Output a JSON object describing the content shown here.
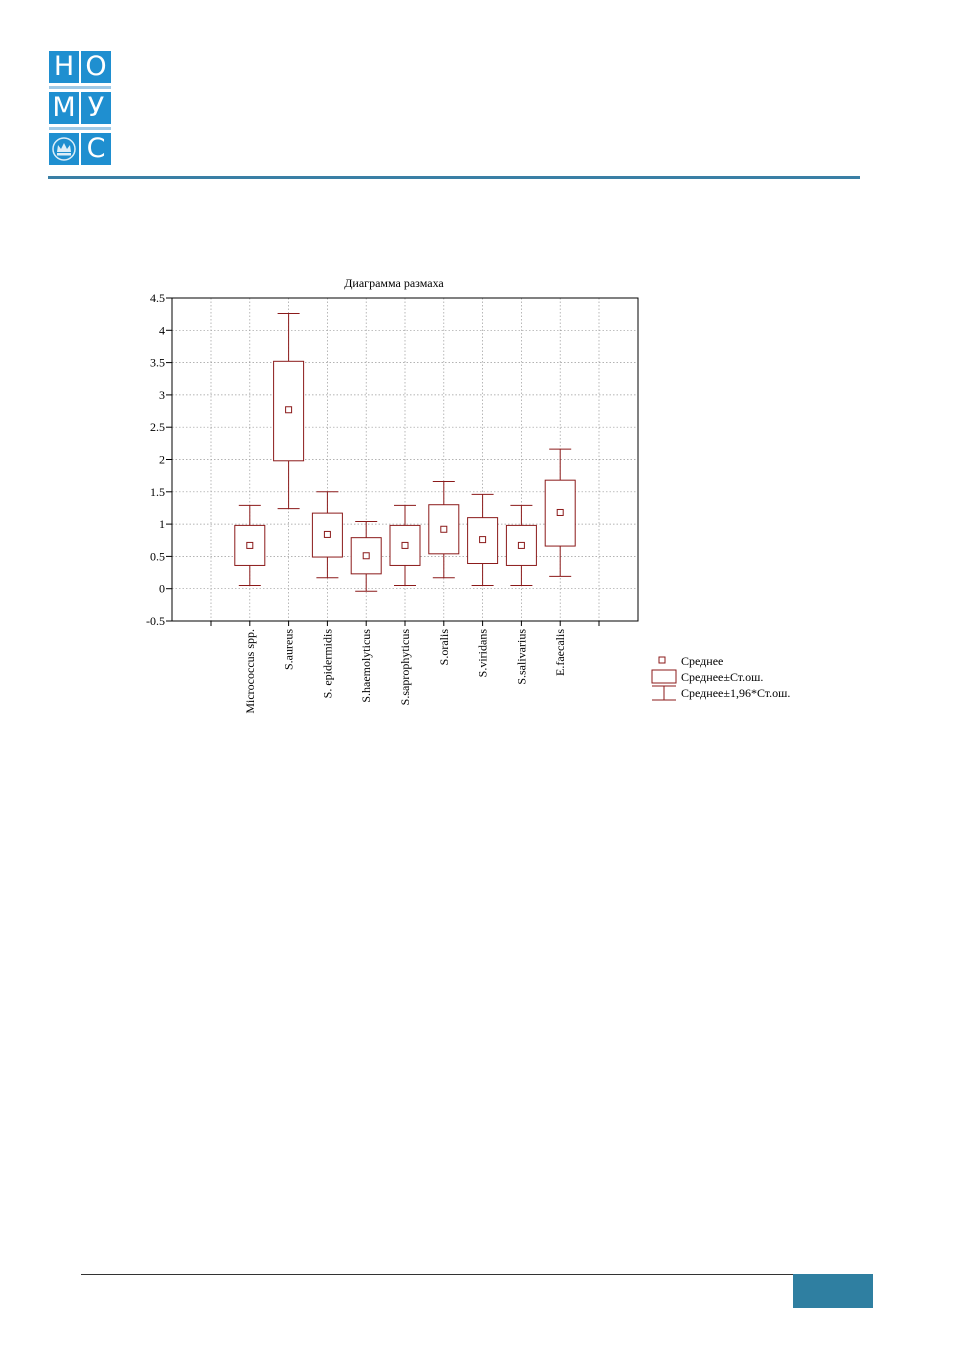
{
  "brand": {
    "logo_letters": [
      "Н",
      "О",
      "М",
      "У",
      "",
      "С"
    ],
    "colors": {
      "logo_blue": "#1f8fd0",
      "logo_sep": "#9fc9e6",
      "header_rule": "#3a7fa5",
      "footer_box": "#2f7fa1"
    }
  },
  "chart_data": {
    "type": "box",
    "title": "Диаграмма размаха",
    "ylim": [
      -0.5,
      4.5
    ],
    "yticks": [
      "4.5",
      "4",
      "3.5",
      "3",
      "2.5",
      "2",
      "1.5",
      "1",
      "0.5",
      "0",
      "-0.5"
    ],
    "grid": true,
    "categories": [
      "Micrococcus spp.",
      "S.aureus",
      "S. epidermidis",
      "S.haemolyticus",
      "S.saprophyticus",
      "S.oralis",
      "S.viridans",
      "S.salivarius",
      "E.faecalis"
    ],
    "mean": [
      0.67,
      2.77,
      0.84,
      0.51,
      0.67,
      0.92,
      0.76,
      0.67,
      1.18
    ],
    "se_low": [
      0.36,
      1.98,
      0.49,
      0.23,
      0.36,
      0.54,
      0.39,
      0.36,
      0.66
    ],
    "se_high": [
      0.98,
      3.52,
      1.17,
      0.79,
      0.98,
      1.3,
      1.1,
      0.98,
      1.68
    ],
    "ci_low": [
      0.05,
      1.24,
      0.17,
      -0.04,
      0.05,
      0.17,
      0.05,
      0.05,
      0.19
    ],
    "ci_high": [
      1.29,
      4.26,
      1.5,
      1.04,
      1.29,
      1.66,
      1.46,
      1.29,
      2.16
    ],
    "series_color": "#8b1a1a",
    "legend": {
      "position": "bottom-right",
      "items": [
        "Среднее",
        "Среднее±Ст.ош.",
        "Среднее±1,96*Ст.ош."
      ]
    }
  }
}
